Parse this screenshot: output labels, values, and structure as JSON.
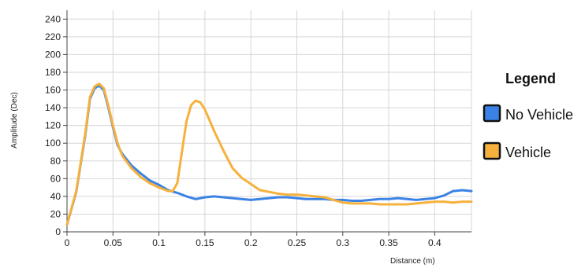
{
  "chart_data": {
    "type": "line",
    "xlabel": "Distance (m)",
    "ylabel": "Amplitude (Dec)",
    "xlim": [
      0,
      0.44
    ],
    "ylim": [
      0,
      250
    ],
    "x_ticks": [
      0,
      0.05,
      0.1,
      0.15,
      0.2,
      0.25,
      0.3,
      0.35,
      0.4
    ],
    "x_tick_labels": [
      "0",
      "0.05",
      "0.1",
      "0.15",
      "0.2",
      "0.25",
      "0.3",
      "0.35",
      "0.4"
    ],
    "y_ticks": [
      0,
      20,
      40,
      60,
      80,
      100,
      120,
      140,
      160,
      180,
      200,
      220,
      240
    ],
    "y_tick_labels": [
      "0",
      "20",
      "40",
      "60",
      "80",
      "100",
      "120",
      "140",
      "160",
      "180",
      "200",
      "220",
      "240"
    ],
    "grid": true,
    "legend": {
      "title": "Legend",
      "placement": "right"
    },
    "series": [
      {
        "name": "No Vehicle",
        "color": "#3b82e6",
        "x": [
          0,
          0.01,
          0.02,
          0.025,
          0.03,
          0.035,
          0.04,
          0.045,
          0.05,
          0.055,
          0.06,
          0.07,
          0.08,
          0.09,
          0.1,
          0.11,
          0.12,
          0.13,
          0.14,
          0.15,
          0.16,
          0.17,
          0.18,
          0.19,
          0.2,
          0.21,
          0.22,
          0.23,
          0.24,
          0.25,
          0.26,
          0.27,
          0.28,
          0.29,
          0.3,
          0.31,
          0.32,
          0.33,
          0.34,
          0.35,
          0.36,
          0.37,
          0.38,
          0.39,
          0.4,
          0.41,
          0.42,
          0.43,
          0.44
        ],
        "y": [
          8,
          45,
          110,
          150,
          162,
          165,
          160,
          140,
          118,
          98,
          88,
          75,
          66,
          58,
          53,
          47,
          44,
          40,
          37,
          39,
          40,
          39,
          38,
          37,
          36,
          37,
          38,
          39,
          39,
          38,
          37,
          37,
          37,
          36,
          36,
          35,
          35,
          36,
          37,
          37,
          38,
          37,
          36,
          37,
          38,
          41,
          46,
          47,
          46
        ]
      },
      {
        "name": "Vehicle",
        "color": "#f6b13d",
        "x": [
          0,
          0.01,
          0.02,
          0.025,
          0.03,
          0.035,
          0.04,
          0.045,
          0.05,
          0.055,
          0.06,
          0.07,
          0.08,
          0.09,
          0.1,
          0.11,
          0.115,
          0.12,
          0.125,
          0.13,
          0.135,
          0.14,
          0.145,
          0.15,
          0.155,
          0.16,
          0.17,
          0.18,
          0.19,
          0.2,
          0.21,
          0.22,
          0.23,
          0.24,
          0.25,
          0.26,
          0.27,
          0.28,
          0.29,
          0.3,
          0.31,
          0.32,
          0.33,
          0.34,
          0.35,
          0.36,
          0.37,
          0.38,
          0.39,
          0.4,
          0.41,
          0.42,
          0.43,
          0.44
        ],
        "y": [
          8,
          46,
          112,
          152,
          164,
          167,
          162,
          142,
          120,
          100,
          86,
          72,
          62,
          55,
          50,
          46,
          46,
          55,
          90,
          125,
          143,
          148,
          146,
          138,
          126,
          114,
          92,
          72,
          61,
          54,
          47,
          45,
          43,
          42,
          42,
          41,
          40,
          39,
          36,
          33,
          32,
          32,
          32,
          31,
          31,
          31,
          31,
          32,
          33,
          34,
          34,
          33,
          34,
          34
        ]
      }
    ]
  }
}
